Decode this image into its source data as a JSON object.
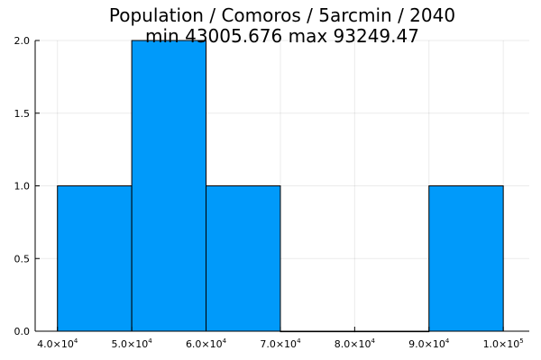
{
  "chart_data": {
    "type": "bar",
    "title": "Population / Comoros / 5arcmin / 2040",
    "subtitle": "min 43005.676  max 93249.47",
    "xlabel": "",
    "ylabel": "",
    "bins": [
      {
        "start": 40000,
        "end": 50000,
        "count": 1
      },
      {
        "start": 50000,
        "end": 60000,
        "count": 2
      },
      {
        "start": 60000,
        "end": 70000,
        "count": 1
      },
      {
        "start": 70000,
        "end": 80000,
        "count": 0
      },
      {
        "start": 80000,
        "end": 90000,
        "count": 0
      },
      {
        "start": 90000,
        "end": 100000,
        "count": 1
      }
    ],
    "xlim": [
      37000,
      103500
    ],
    "ylim": [
      0,
      2
    ],
    "x_ticks": [
      {
        "value": 40000,
        "mantissa": "4.0",
        "exponent": "4"
      },
      {
        "value": 50000,
        "mantissa": "5.0",
        "exponent": "4"
      },
      {
        "value": 60000,
        "mantissa": "6.0",
        "exponent": "4"
      },
      {
        "value": 70000,
        "mantissa": "7.0",
        "exponent": "4"
      },
      {
        "value": 80000,
        "mantissa": "8.0",
        "exponent": "4"
      },
      {
        "value": 90000,
        "mantissa": "9.0",
        "exponent": "4"
      },
      {
        "value": 100000,
        "mantissa": "1.0",
        "exponent": "5"
      }
    ],
    "y_ticks": [
      {
        "value": 0,
        "label": "0.0"
      },
      {
        "value": 0.5,
        "label": "0.5"
      },
      {
        "value": 1,
        "label": "1.0"
      },
      {
        "value": 1.5,
        "label": "1.5"
      },
      {
        "value": 2,
        "label": "2.0"
      }
    ],
    "grid": true,
    "legend": "none",
    "bar_color": "#009AFA"
  }
}
